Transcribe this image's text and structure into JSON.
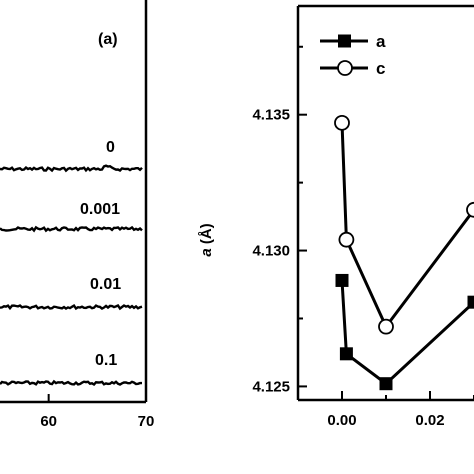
{
  "chart_data": [
    {
      "type": "line",
      "panel_label": "(a)",
      "xlabel": "",
      "ylabel": "",
      "x_ticks": [
        "60",
        "70"
      ],
      "xlim": [
        55,
        70
      ],
      "series": [
        {
          "label": "0"
        },
        {
          "label": "0.001"
        },
        {
          "label": "0.01"
        },
        {
          "label": "0.1"
        }
      ]
    },
    {
      "type": "line",
      "ylabel": "a (Å)",
      "ylabel_parts": {
        "var": "a",
        "unit": " (Å)"
      },
      "xlabel": "",
      "xlim": [
        -0.01,
        0.03
      ],
      "ylim": [
        4.1245,
        4.139
      ],
      "x_ticks": [
        {
          "value": 0.0,
          "label": "0.00"
        },
        {
          "value": 0.02,
          "label": "0.02"
        }
      ],
      "y_ticks": [
        {
          "value": 4.125,
          "label": "4.125"
        },
        {
          "value": 4.13,
          "label": "4.130"
        },
        {
          "value": 4.135,
          "label": "4.135"
        }
      ],
      "legend": {
        "position": "top-left",
        "entries": [
          {
            "text": "a",
            "marker": "filled-square"
          },
          {
            "text": "c",
            "marker": "open-circle"
          }
        ]
      },
      "series": [
        {
          "name": "a",
          "marker": "filled-square",
          "x": [
            0.0,
            0.001,
            0.01,
            0.03
          ],
          "y": [
            4.1289,
            4.1262,
            4.1251,
            4.1281
          ]
        },
        {
          "name": "c",
          "marker": "open-circle",
          "x": [
            0.0,
            0.001,
            0.01,
            0.03
          ],
          "y": [
            4.1347,
            4.1304,
            4.1272,
            4.1315
          ]
        }
      ]
    }
  ]
}
